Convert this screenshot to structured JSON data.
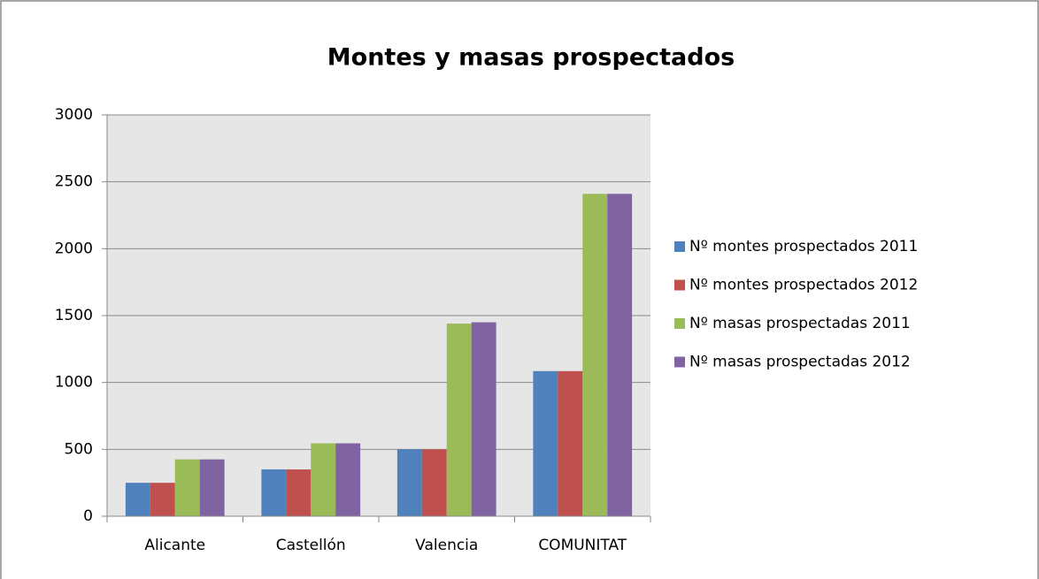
{
  "chart_data": {
    "type": "bar",
    "title": "Montes y masas prospectados",
    "categories": [
      "Alicante",
      "Castellón",
      "Valencia",
      "COMUNITAT"
    ],
    "series": [
      {
        "name": "Nº montes prospectados 2011",
        "color": "#4f81bd",
        "values": [
          250,
          350,
          500,
          1085
        ]
      },
      {
        "name": "Nº montes prospectados 2012",
        "color": "#c0504d",
        "values": [
          250,
          350,
          500,
          1085
        ]
      },
      {
        "name": "Nº masas prospectadas 2011",
        "color": "#9bbb59",
        "values": [
          425,
          545,
          1440,
          2410
        ]
      },
      {
        "name": "Nº masas prospectadas 2012",
        "color": "#8064a2",
        "values": [
          425,
          545,
          1450,
          2410
        ]
      }
    ],
    "ylim": [
      0,
      3000
    ],
    "yticks": [
      0,
      500,
      1000,
      1500,
      2000,
      2500,
      3000
    ],
    "grid": true,
    "legend": "right"
  }
}
